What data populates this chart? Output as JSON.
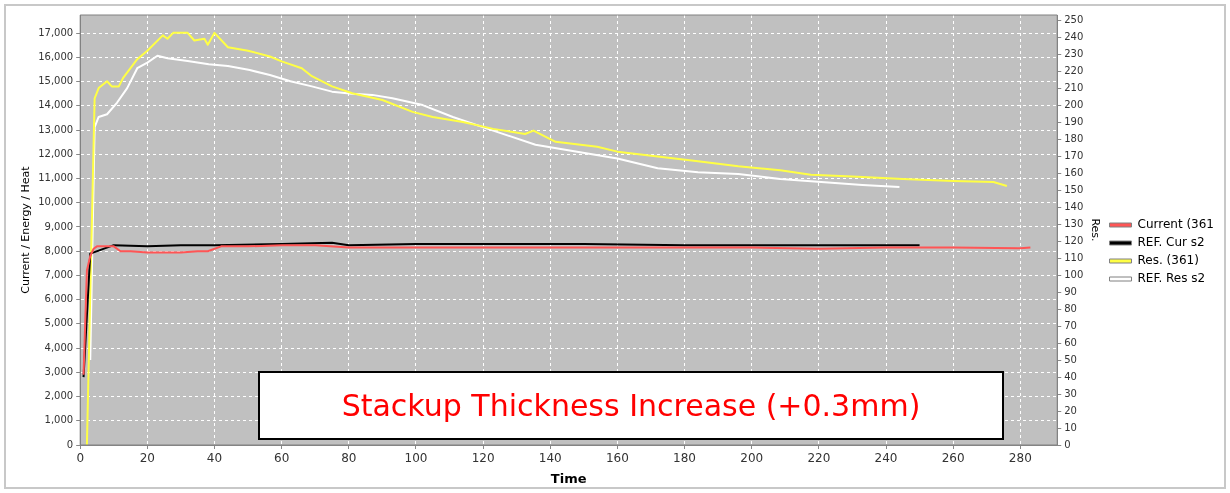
{
  "chart_data": {
    "type": "line",
    "xlabel": "Time",
    "ylabel": "Current / Energy / Heat",
    "y2label": "Res.",
    "annotations": [
      "Stackup Thickness Increase (+0.3mm)"
    ],
    "xlim": [
      0,
      291
    ],
    "xticks": [
      0,
      20,
      40,
      60,
      80,
      100,
      120,
      140,
      160,
      180,
      200,
      220,
      240,
      260,
      280
    ],
    "ylim": [
      0,
      17750
    ],
    "yticks": [
      0,
      {
        "value": 1000,
        "label": "1,000"
      },
      {
        "value": 2000,
        "label": "2,000"
      },
      {
        "value": 3000,
        "label": "3,000"
      },
      {
        "value": 4000,
        "label": "4,000"
      },
      {
        "value": 5000,
        "label": "5,000"
      },
      {
        "value": 6000,
        "label": "6,000"
      },
      {
        "value": 7000,
        "label": "7,000"
      },
      {
        "value": 8000,
        "label": "8,000"
      },
      {
        "value": 9000,
        "label": "9,000"
      },
      {
        "value": 10000,
        "label": "10,000"
      },
      {
        "value": 11000,
        "label": "11,000"
      },
      {
        "value": 12000,
        "label": "12,000"
      },
      {
        "value": 13000,
        "label": "13,000"
      },
      {
        "value": 14000,
        "label": "14,000"
      },
      {
        "value": 15000,
        "label": "15,000"
      },
      {
        "value": 16000,
        "label": "16,000"
      },
      {
        "value": 17000,
        "label": "17,000"
      }
    ],
    "y2lim": [
      0,
      253
    ],
    "y2ticks": [
      0,
      10,
      20,
      30,
      40,
      50,
      60,
      70,
      80,
      90,
      100,
      110,
      120,
      130,
      140,
      150,
      160,
      170,
      180,
      190,
      200,
      210,
      220,
      230,
      240,
      250
    ],
    "grid": true,
    "legend": "right",
    "marker": "none",
    "line_style": "solid",
    "series": [
      {
        "name": "Current (361",
        "color": "#ff5555",
        "x": [
          1,
          2,
          3,
          4,
          5,
          10,
          12,
          15,
          20,
          30,
          35,
          38,
          42,
          50,
          60,
          70,
          80,
          100,
          140,
          160,
          180,
          200,
          220,
          240,
          260,
          280,
          283
        ],
        "values": [
          2900,
          7200,
          7800,
          8100,
          8200,
          8200,
          8000,
          8000,
          7950,
          7950,
          8000,
          8000,
          8200,
          8200,
          8250,
          8250,
          8150,
          8150,
          8150,
          8150,
          8150,
          8150,
          8100,
          8150,
          8150,
          8120,
          8150
        ]
      },
      {
        "name": "REF. Cur s2",
        "color": "#000000",
        "x": [
          1,
          3,
          10,
          20,
          30,
          40,
          60,
          75,
          80,
          100,
          130,
          150,
          180,
          200,
          220,
          240,
          250
        ],
        "values": [
          2800,
          7900,
          8250,
          8200,
          8250,
          8250,
          8300,
          8350,
          8250,
          8300,
          8300,
          8300,
          8250,
          8250,
          8250,
          8250,
          8250
        ]
      },
      {
        "name": "Res. (361)",
        "color": "#ffff44",
        "axis": "y2",
        "x": [
          2,
          4.3,
          5.5,
          8,
          9.4,
          11.5,
          12.8,
          17,
          20,
          24.6,
          26,
          27.7,
          32,
          34,
          37,
          38,
          40,
          44,
          50,
          56.5,
          60,
          66,
          69,
          75,
          81,
          90,
          99,
          105,
          114,
          123,
          132.5,
          135,
          141.6,
          154,
          160,
          172,
          184,
          196,
          208.5,
          217.6,
          230,
          245,
          260,
          272,
          276
        ],
        "values": [
          0,
          204,
          210,
          214,
          211,
          211,
          216,
          227,
          232,
          241,
          239,
          242.5,
          242.5,
          238,
          239,
          235.5,
          242.5,
          234,
          232,
          228.6,
          225.7,
          221.7,
          217,
          211,
          207,
          203,
          196,
          193,
          190,
          186,
          183,
          185,
          178.4,
          175.5,
          172.6,
          169.7,
          167,
          164,
          161.7,
          159,
          158,
          156.5,
          155.3,
          154.7,
          152.4
        ]
      },
      {
        "name": "REF. Res s2",
        "color": "#ffffff",
        "axis": "y2",
        "x": [
          3,
          4.3,
          5.5,
          8,
          11,
          14,
          17,
          20,
          23,
          26,
          32,
          38.3,
          44,
          50.5,
          56.5,
          62.6,
          69,
          75,
          81,
          87,
          93,
          102,
          111,
          123,
          135.6,
          148,
          160,
          172,
          184,
          196,
          208.5,
          220.7,
          233,
          244
        ],
        "values": [
          50,
          187,
          193,
          194.6,
          201.5,
          210,
          221.7,
          225,
          229,
          227.5,
          226,
          224,
          223,
          220.6,
          217.7,
          214,
          211,
          207.9,
          206.7,
          206,
          204,
          200,
          193,
          185,
          176.7,
          172.6,
          168.6,
          162.8,
          160.5,
          159.4,
          156.5,
          154.7,
          153,
          151.8
        ]
      }
    ]
  }
}
